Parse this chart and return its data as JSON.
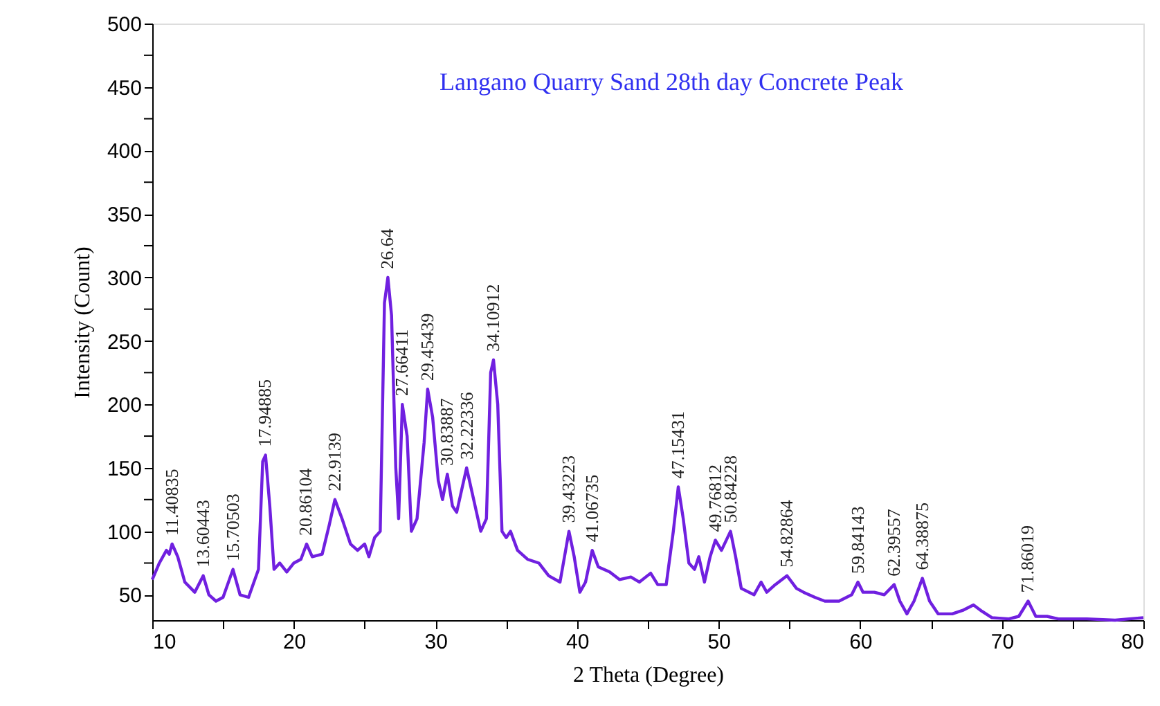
{
  "chart_data": {
    "type": "line",
    "title": "Langano Quarry Sand 28th day Concrete Peak",
    "xlabel": "2 Theta (Degree)",
    "ylabel": "Intensity (Count)",
    "xlim": [
      10,
      80
    ],
    "ylim": [
      30,
      500
    ],
    "xticks": [
      10,
      {
        "value": 15,
        "label": null
      },
      20,
      {
        "value": 25,
        "label": null
      },
      30,
      {
        "value": 35,
        "label": null
      },
      40,
      {
        "value": 45,
        "label": null
      },
      50,
      {
        "value": 55,
        "label": null
      },
      60,
      {
        "value": 65,
        "label": null
      },
      70,
      {
        "value": 75,
        "label": null
      },
      80
    ],
    "yticks": [
      50,
      {
        "value": 75,
        "label": null
      },
      100,
      {
        "value": 125,
        "label": null
      },
      150,
      {
        "value": 175,
        "label": null
      },
      200,
      {
        "value": 225,
        "label": null
      },
      250,
      {
        "value": 275,
        "label": null
      },
      300,
      {
        "value": 325,
        "label": null
      },
      350,
      {
        "value": 375,
        "label": null
      },
      400,
      {
        "value": 425,
        "label": null
      },
      450,
      {
        "value": 475,
        "label": null
      },
      500
    ],
    "grid": false,
    "marker": "none",
    "line_style": "solid",
    "series": [
      {
        "color": "#7020e0",
        "x": [
          10.0,
          10.5,
          11.0,
          11.2,
          11.4,
          11.8,
          12.3,
          13.0,
          13.6,
          14.0,
          14.5,
          15.0,
          15.7,
          16.2,
          16.8,
          17.5,
          17.8,
          18.0,
          18.3,
          18.6,
          19.0,
          19.5,
          20.0,
          20.5,
          20.9,
          21.3,
          22.0,
          22.5,
          22.9,
          23.4,
          24.0,
          24.5,
          25.0,
          25.3,
          25.7,
          26.1,
          26.4,
          26.64,
          26.9,
          27.2,
          27.4,
          27.66,
          28.0,
          28.3,
          28.7,
          29.2,
          29.45,
          29.8,
          30.2,
          30.5,
          30.84,
          31.2,
          31.5,
          32.2,
          32.7,
          33.2,
          33.6,
          33.9,
          34.1,
          34.4,
          34.7,
          35.0,
          35.3,
          35.8,
          36.5,
          37.3,
          38.0,
          38.8,
          39.43,
          39.8,
          40.2,
          40.6,
          41.07,
          41.5,
          42.3,
          43.0,
          43.8,
          44.4,
          45.2,
          45.7,
          46.3,
          46.8,
          47.15,
          47.5,
          47.9,
          48.3,
          48.6,
          49.0,
          49.4,
          49.77,
          50.2,
          50.84,
          51.2,
          51.6,
          52.5,
          53.0,
          53.4,
          54.0,
          54.83,
          55.5,
          56.0,
          56.8,
          57.5,
          58.5,
          59.4,
          59.84,
          60.2,
          61.0,
          61.7,
          62.4,
          62.8,
          63.3,
          63.8,
          64.39,
          64.9,
          65.5,
          66.5,
          67.3,
          68.0,
          68.6,
          69.3,
          70.5,
          71.2,
          71.86,
          72.4,
          73.2,
          74.0,
          76.0,
          78.0,
          79.0,
          80.0
        ],
        "values": [
          62,
          75,
          85,
          82,
          90,
          80,
          60,
          52,
          65,
          50,
          45,
          48,
          70,
          50,
          48,
          70,
          155,
          160,
          120,
          70,
          75,
          68,
          75,
          78,
          90,
          80,
          82,
          105,
          125,
          110,
          90,
          85,
          90,
          80,
          95,
          100,
          280,
          300,
          270,
          150,
          110,
          200,
          175,
          100,
          110,
          170,
          212,
          190,
          140,
          125,
          145,
          120,
          115,
          150,
          125,
          100,
          110,
          225,
          235,
          200,
          100,
          95,
          100,
          85,
          78,
          75,
          65,
          60,
          100,
          80,
          52,
          60,
          85,
          72,
          68,
          62,
          64,
          60,
          67,
          58,
          58,
          100,
          135,
          110,
          75,
          70,
          80,
          60,
          80,
          93,
          85,
          100,
          80,
          55,
          50,
          60,
          52,
          58,
          65,
          55,
          52,
          48,
          45,
          45,
          50,
          60,
          52,
          52,
          50,
          58,
          45,
          35,
          45,
          63,
          45,
          35,
          35,
          38,
          42,
          37,
          32,
          31,
          33,
          45,
          33,
          33,
          31,
          31,
          30,
          31,
          32
        ]
      }
    ],
    "annotations": [
      {
        "text": "11.40835",
        "x": 11.40835,
        "y": 90
      },
      {
        "text": "13.60443",
        "x": 13.60443,
        "y": 65
      },
      {
        "text": "15.70503",
        "x": 15.70503,
        "y": 70
      },
      {
        "text": "17.94885",
        "x": 17.94885,
        "y": 160
      },
      {
        "text": "20.86104",
        "x": 20.86104,
        "y": 90
      },
      {
        "text": "22.9139",
        "x": 22.9139,
        "y": 125
      },
      {
        "text": "26.64",
        "x": 26.64,
        "y": 300
      },
      {
        "text": "27.66411",
        "x": 27.66411,
        "y": 200
      },
      {
        "text": "29.45439",
        "x": 29.45439,
        "y": 212
      },
      {
        "text": "30.83887",
        "x": 30.83887,
        "y": 145
      },
      {
        "text": "32.22336",
        "x": 32.22336,
        "y": 150
      },
      {
        "text": "34.10912",
        "x": 34.10912,
        "y": 235
      },
      {
        "text": "39.43223",
        "x": 39.43223,
        "y": 100
      },
      {
        "text": "41.06735",
        "x": 41.06735,
        "y": 85
      },
      {
        "text": "47.15431",
        "x": 47.15431,
        "y": 135
      },
      {
        "text": "49.76812",
        "x": 49.76812,
        "y": 93
      },
      {
        "text": "50.84228",
        "x": 50.84228,
        "y": 100
      },
      {
        "text": "54.82864",
        "x": 54.82864,
        "y": 65
      },
      {
        "text": "59.84143",
        "x": 59.84143,
        "y": 60
      },
      {
        "text": "62.39557",
        "x": 62.39557,
        "y": 58
      },
      {
        "text": "64.38875",
        "x": 64.38875,
        "y": 63
      },
      {
        "text": "71.86019",
        "x": 71.86019,
        "y": 45
      }
    ]
  }
}
